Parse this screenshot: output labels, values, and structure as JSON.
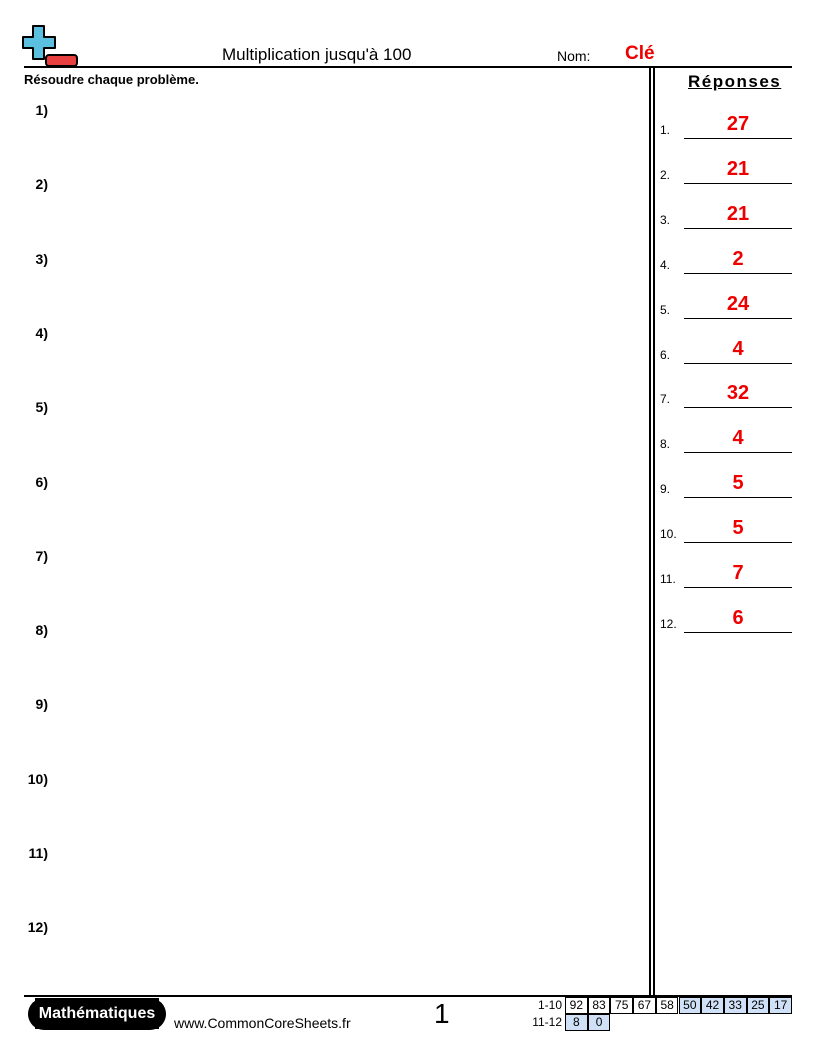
{
  "header": {
    "title": "Multiplication jusqu'à 100",
    "name_label": "Nom:",
    "name_value": "Clé",
    "instructions": "Résoudre chaque problème."
  },
  "problems": [
    "1)",
    "2)",
    "3)",
    "4)",
    "5)",
    "6)",
    "7)",
    "8)",
    "9)",
    "10)",
    "11)",
    "12)"
  ],
  "answers": {
    "heading": "Réponses",
    "items": [
      {
        "n": "1.",
        "v": "27"
      },
      {
        "n": "2.",
        "v": "21"
      },
      {
        "n": "3.",
        "v": "21"
      },
      {
        "n": "4.",
        "v": "2"
      },
      {
        "n": "5.",
        "v": "24"
      },
      {
        "n": "6.",
        "v": "4"
      },
      {
        "n": "7.",
        "v": "32"
      },
      {
        "n": "8.",
        "v": "4"
      },
      {
        "n": "9.",
        "v": "5"
      },
      {
        "n": "10.",
        "v": "5"
      },
      {
        "n": "11.",
        "v": "7"
      },
      {
        "n": "12.",
        "v": "6"
      }
    ]
  },
  "footer": {
    "subject": "Mathématiques",
    "url": "www.CommonCoreSheets.fr",
    "page": "1",
    "score_rows": [
      {
        "label": "1-10",
        "cells": [
          "92",
          "83",
          "75",
          "67",
          "58",
          "50",
          "42",
          "33",
          "25",
          "17"
        ]
      },
      {
        "label": "11-12",
        "cells": [
          "8",
          "0"
        ]
      }
    ],
    "shaded_color": "#cfe0f7"
  },
  "colors": {
    "answer": "#e00000",
    "logo_plus": "#5bbfe0",
    "logo_minus": "#e84040"
  }
}
